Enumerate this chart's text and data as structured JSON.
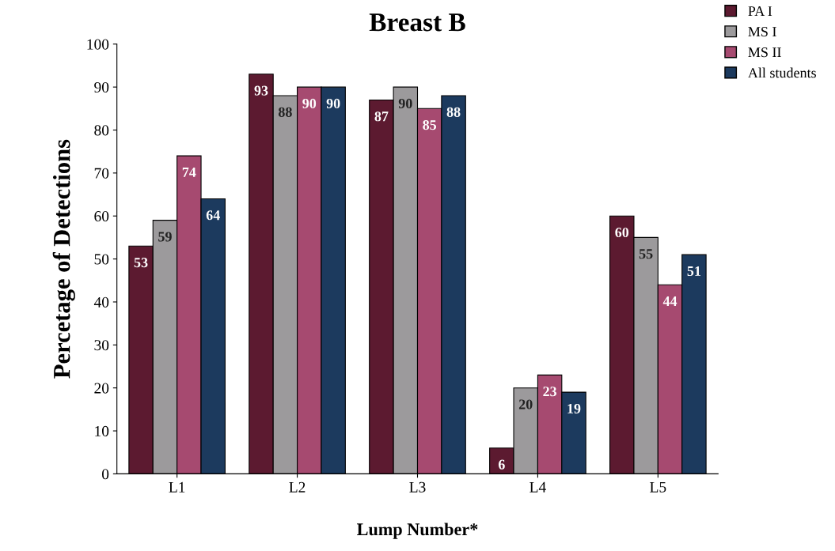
{
  "chart_data": {
    "type": "bar",
    "title": "Breast B",
    "xlabel": "Lump Number*",
    "ylabel": "Percetage of Detections",
    "categories": [
      "L1",
      "L2",
      "L3",
      "L4",
      "L5"
    ],
    "series": [
      {
        "name": "PA I",
        "color": "#5c1a30",
        "values": [
          53,
          93,
          87,
          6,
          60
        ]
      },
      {
        "name": "MS I",
        "color": "#9c9a9c",
        "values": [
          59,
          88,
          90,
          20,
          55
        ]
      },
      {
        "name": "MS II",
        "color": "#a64a70",
        "values": [
          74,
          90,
          85,
          23,
          44
        ]
      },
      {
        "name": "All students",
        "color": "#1c3a5e",
        "values": [
          64,
          90,
          88,
          19,
          51
        ]
      }
    ],
    "ylim": [
      0,
      100
    ],
    "yticks": [
      0,
      10,
      20,
      30,
      40,
      50,
      60,
      70,
      80,
      90,
      100
    ],
    "data_labels": true,
    "legend": "top right",
    "grid": false
  }
}
